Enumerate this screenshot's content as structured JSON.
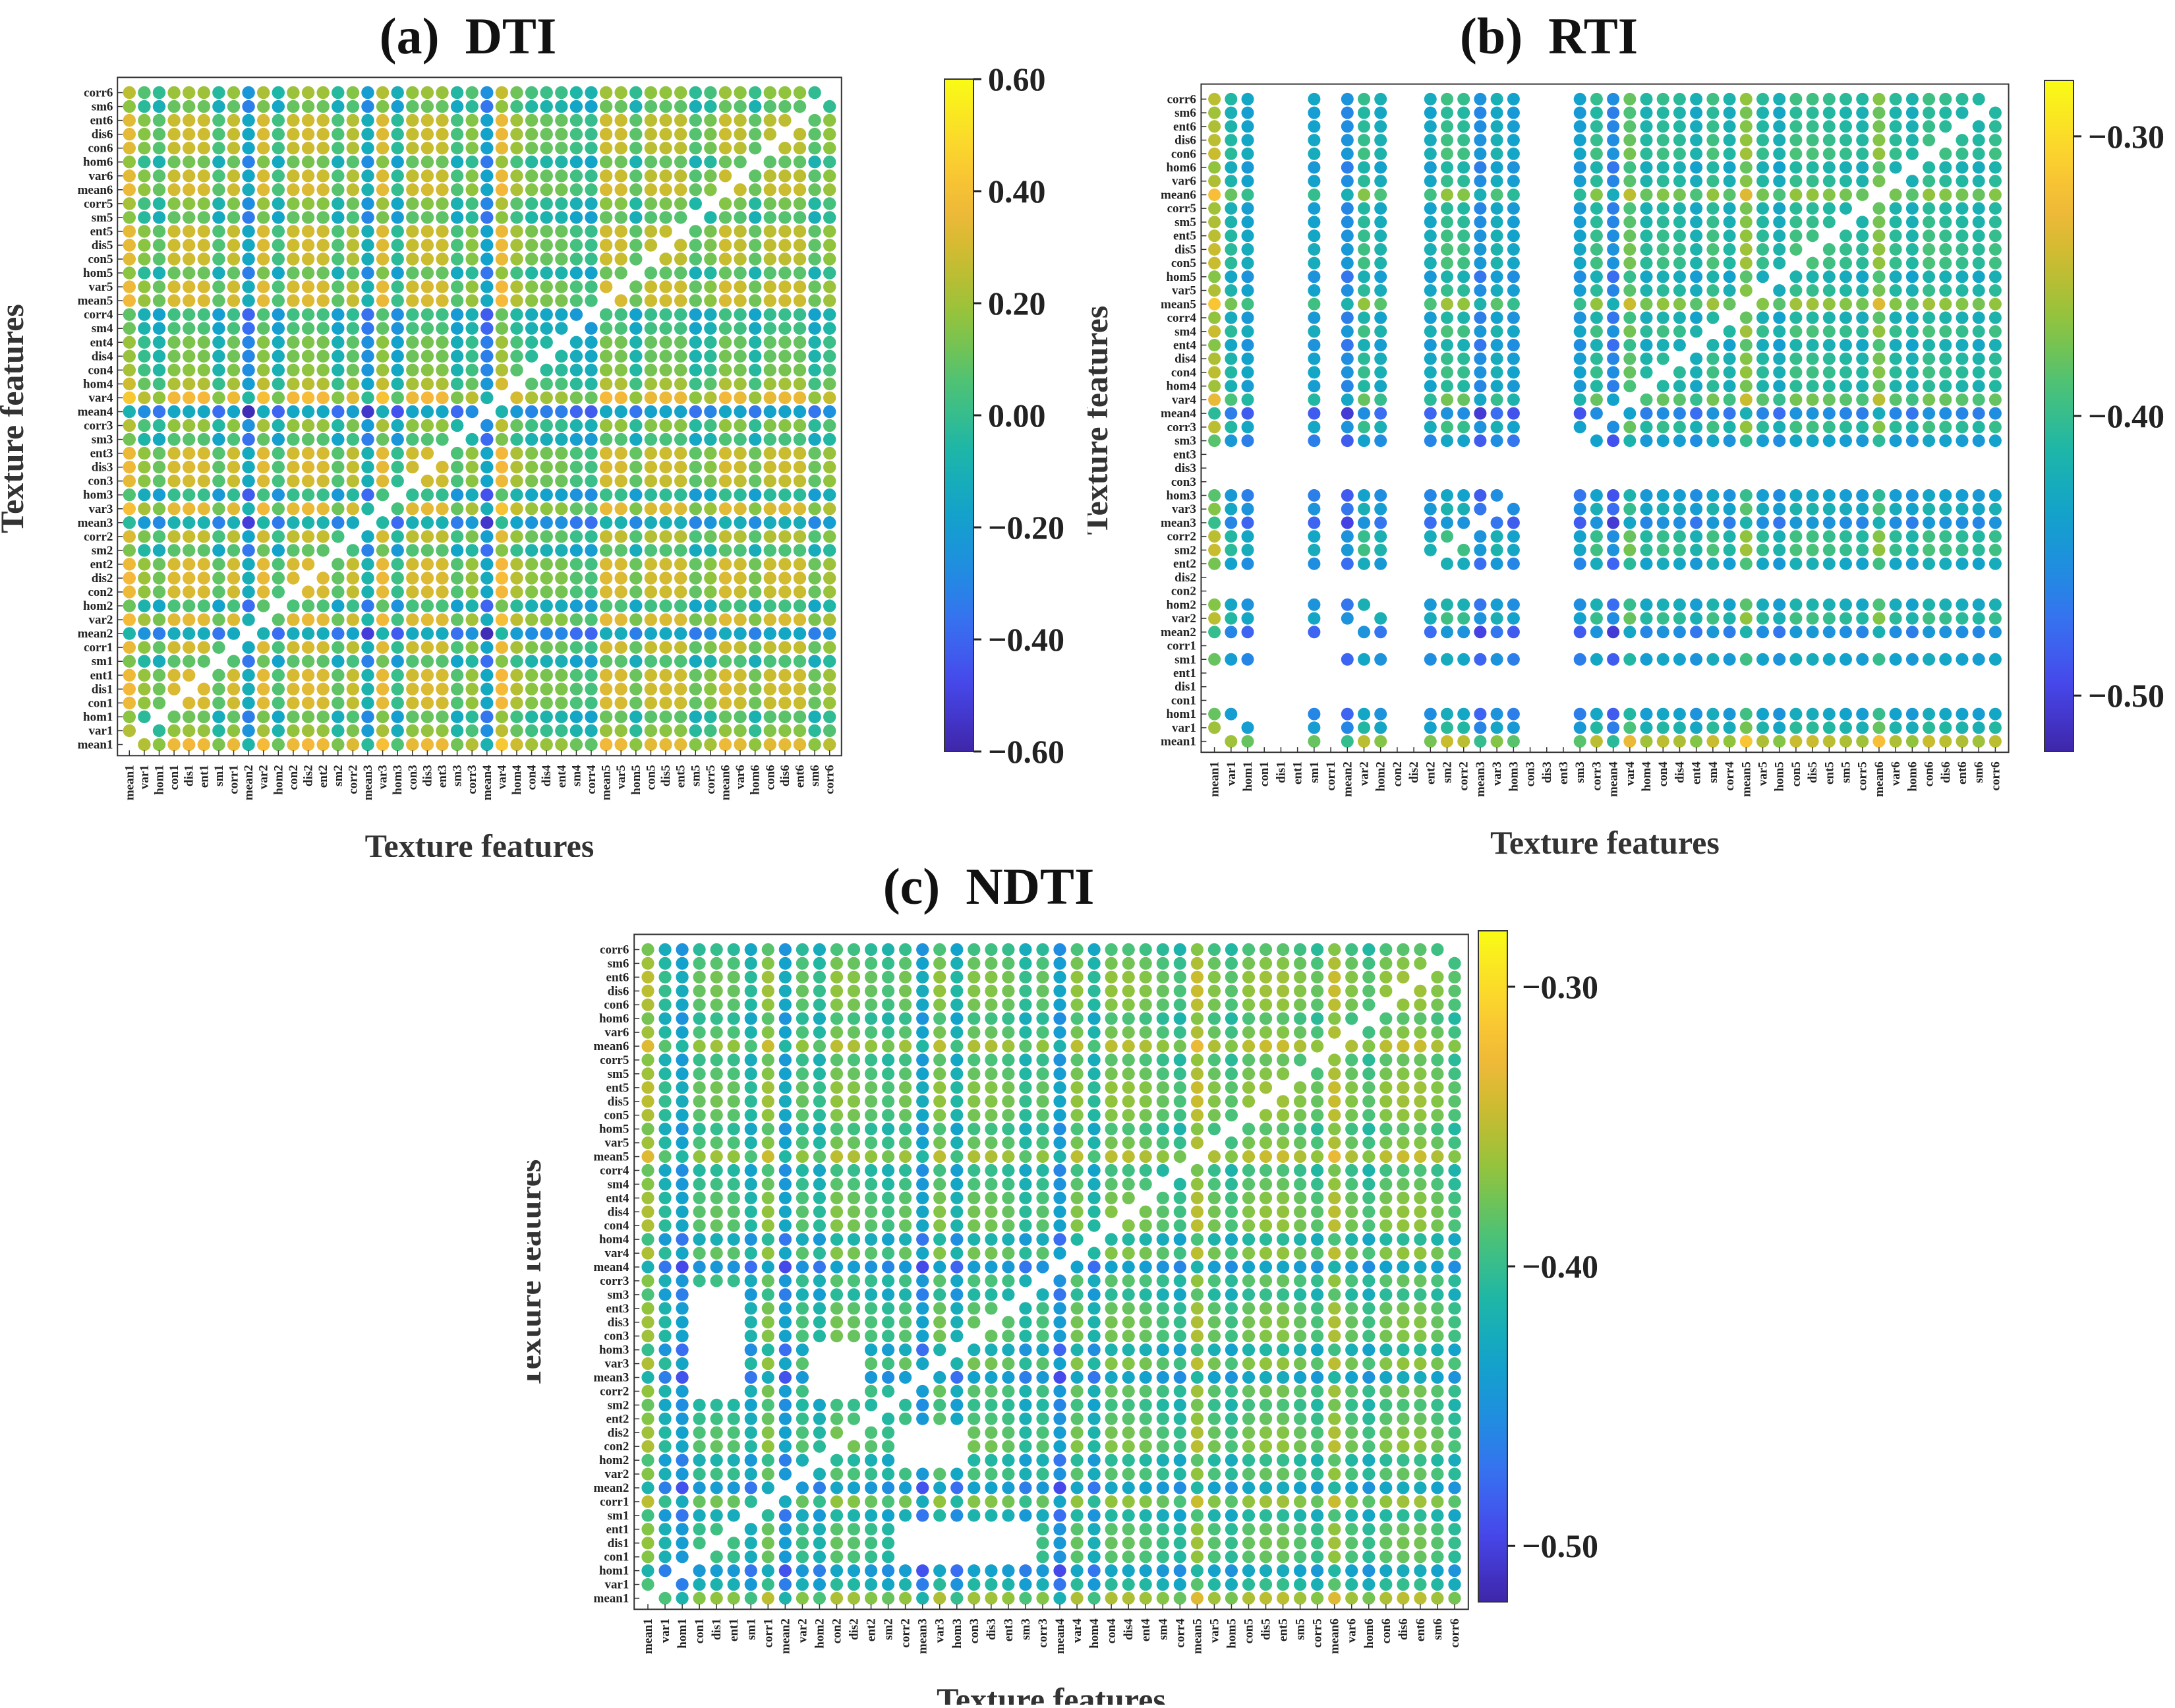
{
  "features": [
    "mean1",
    "var1",
    "hom1",
    "con1",
    "dis1",
    "ent1",
    "sm1",
    "corr1",
    "mean2",
    "var2",
    "hom2",
    "con2",
    "dis2",
    "ent2",
    "sm2",
    "corr2",
    "mean3",
    "var3",
    "hom3",
    "con3",
    "dis3",
    "ent3",
    "sm3",
    "corr3",
    "mean4",
    "var4",
    "hom4",
    "con4",
    "dis4",
    "ent4",
    "sm4",
    "corr4",
    "mean5",
    "var5",
    "hom5",
    "con5",
    "dis5",
    "ent5",
    "sm5",
    "corr5",
    "mean6",
    "var6",
    "hom6",
    "con6",
    "dis6",
    "ent6",
    "sm6",
    "corr6"
  ],
  "colormap": [
    "#3e26a8",
    "#4743e8",
    "#3b6cf3",
    "#1f8fe0",
    "#12a4c9",
    "#1fb7a5",
    "#4cc277",
    "#8cc43f",
    "#c8bc2f",
    "#f6b83a",
    "#fbd92a",
    "#f9fb15"
  ],
  "chart_data": [
    {
      "type": "heatmap",
      "panel": "a",
      "title": "(a)  DTI",
      "xlabel": "Texture features",
      "ylabel": "Texture features",
      "clim": [
        -0.6,
        0.6
      ],
      "colorbar_ticks": [
        "0.60",
        "0.40",
        "0.20",
        "0.00",
        "−0.20",
        "−0.40",
        "−0.60"
      ],
      "colorbar_tick_values": [
        0.6,
        0.4,
        0.2,
        0.0,
        -0.2,
        -0.4,
        -0.6
      ],
      "missing_features": [],
      "feature_values": [
        0.42,
        0.05,
        -0.1,
        0.3,
        0.33,
        0.31,
        -0.15,
        0.28,
        -0.55,
        0.36,
        -0.2,
        0.3,
        0.34,
        0.31,
        -0.15,
        0.22,
        -0.48,
        0.38,
        -0.3,
        0.27,
        0.31,
        0.29,
        -0.18,
        0.05,
        -0.6,
        0.45,
        0.15,
        0.0,
        -0.05,
        -0.05,
        -0.2,
        -0.25,
        0.32,
        0.3,
        -0.1,
        0.25,
        0.27,
        0.26,
        -0.12,
        0.0,
        0.3,
        0.25,
        -0.08,
        0.24,
        0.26,
        0.25,
        -0.1,
        0.08
      ]
    },
    {
      "type": "heatmap",
      "panel": "b",
      "title": "(b)  RTI",
      "xlabel": "Texture features",
      "ylabel": "Texture features",
      "clim": [
        -0.52,
        -0.28
      ],
      "colorbar_ticks": [
        "−0.30",
        "−0.40",
        "−0.50"
      ],
      "colorbar_tick_values": [
        -0.3,
        -0.4,
        -0.5
      ],
      "missing_features": [
        "con1",
        "dis1",
        "ent1",
        "corr1",
        "con2",
        "dis2",
        "con3",
        "dis3",
        "ent3"
      ],
      "feature_values": [
        -0.3,
        -0.42,
        -0.46,
        -0.48,
        -0.47,
        -0.45,
        -0.46,
        -0.36,
        -0.5,
        -0.4,
        -0.44,
        -0.42,
        -0.42,
        -0.45,
        -0.39,
        -0.4,
        -0.5,
        -0.44,
        -0.47,
        -0.43,
        -0.44,
        -0.45,
        -0.47,
        -0.4,
        -0.51,
        -0.36,
        -0.42,
        -0.4,
        -0.41,
        -0.44,
        -0.39,
        -0.43,
        -0.33,
        -0.41,
        -0.44,
        -0.39,
        -0.39,
        -0.4,
        -0.41,
        -0.42,
        -0.34,
        -0.41,
        -0.43,
        -0.39,
        -0.4,
        -0.41,
        -0.42,
        -0.4
      ]
    },
    {
      "type": "heatmap",
      "panel": "c",
      "title": "(c)  NDTI",
      "xlabel": "Texture features",
      "ylabel": "Texture features",
      "clim": [
        -0.52,
        -0.28
      ],
      "colorbar_ticks": [
        "−0.30",
        "−0.40",
        "−0.50"
      ],
      "colorbar_tick_values": [
        -0.3,
        -0.4,
        -0.5
      ],
      "missing_features": [],
      "missing_blocks": [
        [
          3,
          5,
          15,
          18
        ],
        [
          3,
          5,
          19,
          22
        ],
        [
          10,
          12,
          15,
          18
        ],
        [
          19,
          22,
          3,
          5
        ]
      ],
      "feature_values": [
        -0.34,
        -0.44,
        -0.49,
        -0.4,
        -0.39,
        -0.4,
        -0.45,
        -0.36,
        -0.49,
        -0.4,
        -0.44,
        -0.37,
        -0.38,
        -0.4,
        -0.42,
        -0.39,
        -0.49,
        -0.37,
        -0.46,
        -0.38,
        -0.38,
        -0.39,
        -0.44,
        -0.4,
        -0.5,
        -0.37,
        -0.45,
        -0.37,
        -0.37,
        -0.38,
        -0.4,
        -0.42,
        -0.33,
        -0.38,
        -0.41,
        -0.37,
        -0.36,
        -0.36,
        -0.38,
        -0.4,
        -0.33,
        -0.38,
        -0.41,
        -0.37,
        -0.36,
        -0.36,
        -0.38,
        -0.41
      ]
    }
  ]
}
